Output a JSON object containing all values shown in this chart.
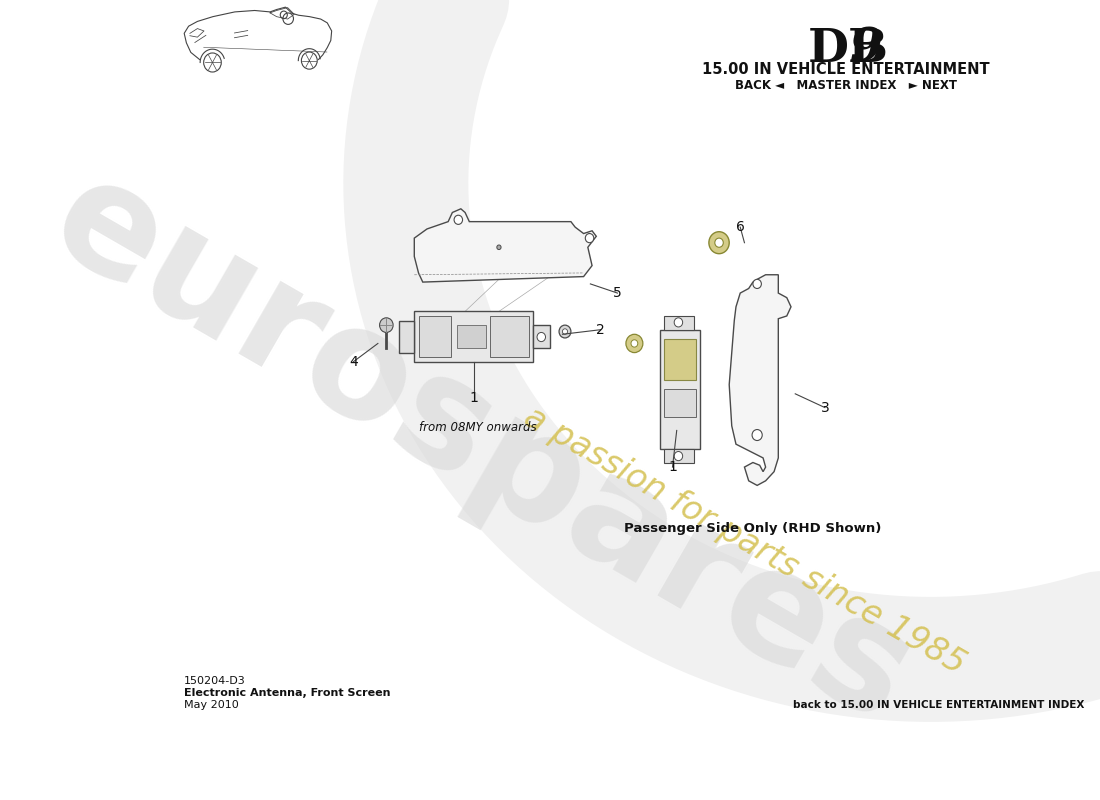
{
  "title_db": "DB",
  "title_9": "9",
  "title_section": "15.00 IN VEHICLE ENTERTAINMENT",
  "nav_text": "BACK ◄   MASTER INDEX   ► NEXT",
  "part_code": "150204-D3",
  "part_name": "Electronic Antenna, Front Screen",
  "part_date": "May 2010",
  "back_link": "back to 15.00 IN VEHICLE ENTERTAINMENT INDEX",
  "caption_right": "Passenger Side Only (RHD Shown)",
  "note_left": "from 08MY onwards",
  "bg_color": "#ffffff",
  "watermark_eurospares_color": "#d8d8d8",
  "watermark_passion_color": "#d4c050",
  "swash_color": "#d8d8d8",
  "line_color": "#555555",
  "label_color": "#111111"
}
